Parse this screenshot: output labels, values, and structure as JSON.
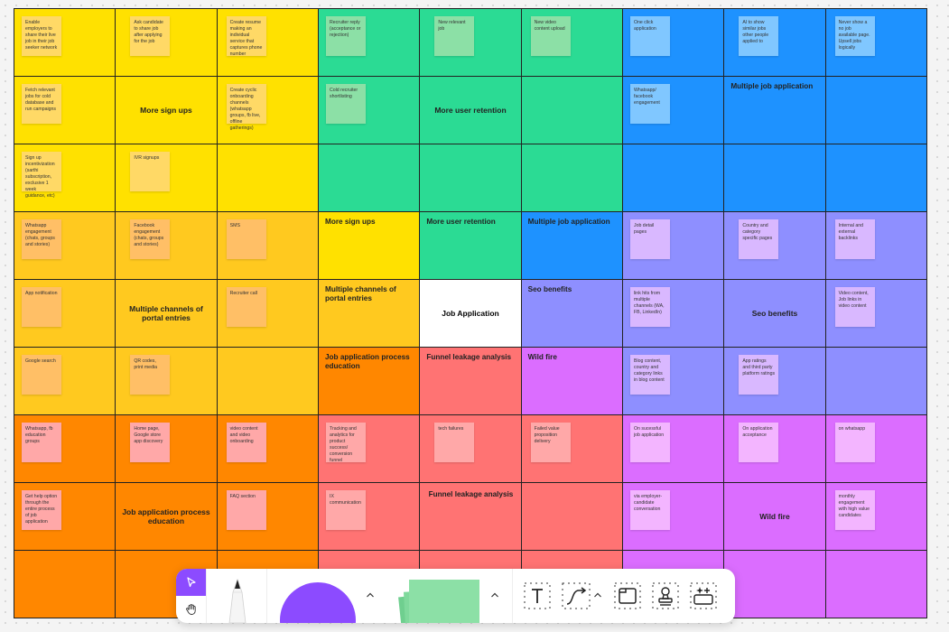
{
  "colors": {
    "yellow": "#ffe100",
    "gold": "#ffc91f",
    "orange": "#ff8700",
    "green": "#2bdb94",
    "salmon": "#ff7373",
    "blue": "#1e92ff",
    "periwinkle": "#8e8fff",
    "magenta": "#db6dff",
    "white": "#ffffff",
    "sticky_yellow": "#ffd966",
    "sticky_orange": "#ffbf66",
    "sticky_green": "#8ce0a6",
    "sticky_blue": "#80c7ff",
    "sticky_pink": "#ffa8a8",
    "sticky_lilac": "#d9b8ff",
    "sticky_violet": "#f3b5ff",
    "toolbar_accent": "#8c4bff"
  },
  "board": {
    "cells": [
      {
        "r": 1,
        "c": 1,
        "bg": "yellow",
        "sticky": {
          "text": "Enable employers to share their live job in their job seeker network",
          "color": "sticky_yellow"
        }
      },
      {
        "r": 1,
        "c": 2,
        "bg": "yellow",
        "sticky": {
          "text": "Ask candidate to share job after applying for the job",
          "color": "sticky_yellow"
        }
      },
      {
        "r": 1,
        "c": 3,
        "bg": "yellow",
        "sticky": {
          "text": "Create resume making an individual service that captures phone number",
          "color": "sticky_yellow"
        }
      },
      {
        "r": 1,
        "c": 4,
        "bg": "green",
        "sticky": {
          "text": "Recruiter reply (acceptance or rejection)",
          "color": "sticky_green"
        }
      },
      {
        "r": 1,
        "c": 5,
        "bg": "green",
        "sticky": {
          "text": "New relevant job",
          "color": "sticky_green"
        }
      },
      {
        "r": 1,
        "c": 6,
        "bg": "green",
        "sticky": {
          "text": "New video content upload",
          "color": "sticky_green"
        }
      },
      {
        "r": 1,
        "c": 7,
        "bg": "blue",
        "sticky": {
          "text": "One click application",
          "color": "sticky_blue"
        }
      },
      {
        "r": 1,
        "c": 8,
        "bg": "blue",
        "sticky": {
          "text": "AI to show similar jobs other people applied to",
          "color": "sticky_blue"
        }
      },
      {
        "r": 1,
        "c": 9,
        "bg": "blue",
        "sticky": {
          "text": "Never show a no job available page. Upsell jobs logically",
          "color": "sticky_blue"
        }
      },
      {
        "r": 2,
        "c": 1,
        "bg": "yellow",
        "sticky": {
          "text": "Fetch relevant jobs for cold database and run campaigns",
          "color": "sticky_yellow"
        }
      },
      {
        "r": 2,
        "c": 2,
        "bg": "yellow",
        "label": {
          "text": "More sign ups",
          "pos": "center"
        }
      },
      {
        "r": 2,
        "c": 3,
        "bg": "yellow",
        "sticky": {
          "text": "Create cyclic onboarding channels (whatsapp groups, fb live, offline gatherings)",
          "color": "sticky_yellow"
        }
      },
      {
        "r": 2,
        "c": 4,
        "bg": "green",
        "sticky": {
          "text": "Cold recruiter shortlisting",
          "color": "sticky_green"
        }
      },
      {
        "r": 2,
        "c": 5,
        "bg": "green",
        "label": {
          "text": "More user retention",
          "pos": "center"
        }
      },
      {
        "r": 2,
        "c": 6,
        "bg": "green"
      },
      {
        "r": 2,
        "c": 7,
        "bg": "blue",
        "sticky": {
          "text": "Whatsapp/ facebook engagement",
          "color": "sticky_blue"
        }
      },
      {
        "r": 2,
        "c": 8,
        "bg": "blue",
        "label": {
          "text": "Multiple job application",
          "pos": "top"
        }
      },
      {
        "r": 2,
        "c": 9,
        "bg": "blue"
      },
      {
        "r": 3,
        "c": 1,
        "bg": "yellow",
        "sticky": {
          "text": "Sign up incentivization (sarthi subscription, exclusive 1 week guidance, etc)",
          "color": "sticky_yellow"
        }
      },
      {
        "r": 3,
        "c": 2,
        "bg": "yellow",
        "sticky": {
          "text": "IVR signups",
          "color": "sticky_yellow"
        }
      },
      {
        "r": 3,
        "c": 3,
        "bg": "yellow"
      },
      {
        "r": 3,
        "c": 4,
        "bg": "green"
      },
      {
        "r": 3,
        "c": 5,
        "bg": "green"
      },
      {
        "r": 3,
        "c": 6,
        "bg": "green"
      },
      {
        "r": 3,
        "c": 7,
        "bg": "blue"
      },
      {
        "r": 3,
        "c": 8,
        "bg": "blue"
      },
      {
        "r": 3,
        "c": 9,
        "bg": "blue"
      },
      {
        "r": 4,
        "c": 1,
        "bg": "gold",
        "sticky": {
          "text": "Whatsapp engagement (chats, groups and stories)",
          "color": "sticky_orange"
        }
      },
      {
        "r": 4,
        "c": 2,
        "bg": "gold",
        "sticky": {
          "text": "Facebook engagement (chats, groups and stories)",
          "color": "sticky_orange"
        }
      },
      {
        "r": 4,
        "c": 3,
        "bg": "gold",
        "sticky": {
          "text": "SMS",
          "color": "sticky_orange"
        }
      },
      {
        "r": 4,
        "c": 4,
        "bg": "yellow",
        "label": {
          "text": "More sign ups",
          "pos": "top"
        }
      },
      {
        "r": 4,
        "c": 5,
        "bg": "green",
        "label": {
          "text": "More user retention",
          "pos": "top"
        }
      },
      {
        "r": 4,
        "c": 6,
        "bg": "blue",
        "label": {
          "text": "Multiple job application",
          "pos": "top"
        }
      },
      {
        "r": 4,
        "c": 7,
        "bg": "periwinkle",
        "sticky": {
          "text": "Job detail pages",
          "color": "sticky_lilac"
        }
      },
      {
        "r": 4,
        "c": 8,
        "bg": "periwinkle",
        "sticky": {
          "text": "Country and category specific pages",
          "color": "sticky_lilac"
        }
      },
      {
        "r": 4,
        "c": 9,
        "bg": "periwinkle",
        "sticky": {
          "text": "Internal and external backlinks",
          "color": "sticky_lilac"
        }
      },
      {
        "r": 5,
        "c": 1,
        "bg": "gold",
        "sticky": {
          "text": "App notification",
          "color": "sticky_orange"
        }
      },
      {
        "r": 5,
        "c": 2,
        "bg": "gold",
        "label": {
          "text": "Multiple channels of portal entries",
          "pos": "center"
        }
      },
      {
        "r": 5,
        "c": 3,
        "bg": "gold",
        "sticky": {
          "text": "Recruiter call",
          "color": "sticky_orange"
        }
      },
      {
        "r": 5,
        "c": 4,
        "bg": "gold",
        "label": {
          "text": "Multiple channels of portal entries",
          "pos": "top"
        }
      },
      {
        "r": 5,
        "c": 5,
        "bg": "white",
        "label": {
          "text": "Job Application",
          "pos": "center"
        }
      },
      {
        "r": 5,
        "c": 6,
        "bg": "periwinkle",
        "label": {
          "text": "Seo benefits",
          "pos": "top"
        }
      },
      {
        "r": 5,
        "c": 7,
        "bg": "periwinkle",
        "sticky": {
          "text": "link hits from multiple channels (WA, FB, LinkedIn)",
          "color": "sticky_lilac"
        }
      },
      {
        "r": 5,
        "c": 8,
        "bg": "periwinkle",
        "label": {
          "text": "Seo benefits",
          "pos": "center"
        }
      },
      {
        "r": 5,
        "c": 9,
        "bg": "periwinkle",
        "sticky": {
          "text": "Video content, Job links in video content",
          "color": "sticky_lilac"
        }
      },
      {
        "r": 6,
        "c": 1,
        "bg": "gold",
        "sticky": {
          "text": "Google search",
          "color": "sticky_orange"
        }
      },
      {
        "r": 6,
        "c": 2,
        "bg": "gold",
        "sticky": {
          "text": "QR codes, print media",
          "color": "sticky_orange"
        }
      },
      {
        "r": 6,
        "c": 3,
        "bg": "gold"
      },
      {
        "r": 6,
        "c": 4,
        "bg": "orange",
        "label": {
          "text": "Job application process education",
          "pos": "top"
        }
      },
      {
        "r": 6,
        "c": 5,
        "bg": "salmon",
        "label": {
          "text": "Funnel leakage analysis",
          "pos": "top"
        }
      },
      {
        "r": 6,
        "c": 6,
        "bg": "magenta",
        "label": {
          "text": "Wild fire",
          "pos": "top"
        }
      },
      {
        "r": 6,
        "c": 7,
        "bg": "periwinkle",
        "sticky": {
          "text": "Blog content, country and category links in blog content",
          "color": "sticky_lilac"
        }
      },
      {
        "r": 6,
        "c": 8,
        "bg": "periwinkle",
        "sticky": {
          "text": "App ratings and third party platform ratings",
          "color": "sticky_lilac"
        }
      },
      {
        "r": 6,
        "c": 9,
        "bg": "periwinkle"
      },
      {
        "r": 7,
        "c": 1,
        "bg": "orange",
        "sticky": {
          "text": "Whatsapp, fb education groups",
          "color": "sticky_pink"
        }
      },
      {
        "r": 7,
        "c": 2,
        "bg": "orange",
        "sticky": {
          "text": "Home page, Google store app discovery",
          "color": "sticky_pink"
        }
      },
      {
        "r": 7,
        "c": 3,
        "bg": "orange",
        "sticky": {
          "text": "video content and video onboarding",
          "color": "sticky_pink"
        }
      },
      {
        "r": 7,
        "c": 4,
        "bg": "salmon",
        "sticky": {
          "text": "Tracking and analytics for product success/ conversion funnel",
          "color": "sticky_pink"
        }
      },
      {
        "r": 7,
        "c": 5,
        "bg": "salmon",
        "sticky": {
          "text": "tech failures",
          "color": "sticky_pink"
        }
      },
      {
        "r": 7,
        "c": 6,
        "bg": "salmon",
        "sticky": {
          "text": "Failed value proposition delivery",
          "color": "sticky_pink"
        }
      },
      {
        "r": 7,
        "c": 7,
        "bg": "magenta",
        "sticky": {
          "text": "On sucessful job application",
          "color": "sticky_violet"
        }
      },
      {
        "r": 7,
        "c": 8,
        "bg": "magenta",
        "sticky": {
          "text": "On application acceptance",
          "color": "sticky_violet"
        }
      },
      {
        "r": 7,
        "c": 9,
        "bg": "magenta",
        "sticky": {
          "text": "on whatsapp",
          "color": "sticky_violet"
        }
      },
      {
        "r": 8,
        "c": 1,
        "bg": "orange",
        "sticky": {
          "text": "Get help option through the entire process of job application",
          "color": "sticky_pink"
        }
      },
      {
        "r": 8,
        "c": 2,
        "bg": "orange",
        "label": {
          "text": "Job application process education",
          "pos": "center"
        }
      },
      {
        "r": 8,
        "c": 3,
        "bg": "orange",
        "sticky": {
          "text": "FAQ section",
          "color": "sticky_pink"
        }
      },
      {
        "r": 8,
        "c": 4,
        "bg": "salmon",
        "sticky": {
          "text": "IX communication",
          "color": "sticky_pink"
        }
      },
      {
        "r": 8,
        "c": 5,
        "bg": "salmon",
        "label": {
          "text": "Funnel leakage analysis",
          "pos": "topc"
        }
      },
      {
        "r": 8,
        "c": 6,
        "bg": "salmon"
      },
      {
        "r": 8,
        "c": 7,
        "bg": "magenta",
        "sticky": {
          "text": "via employer-candidate conversation",
          "color": "sticky_violet"
        }
      },
      {
        "r": 8,
        "c": 8,
        "bg": "magenta",
        "label": {
          "text": "Wild fire",
          "pos": "center"
        }
      },
      {
        "r": 8,
        "c": 9,
        "bg": "magenta",
        "sticky": {
          "text": "monthly engagement with high value candidates",
          "color": "sticky_violet"
        }
      },
      {
        "r": 9,
        "c": 1,
        "bg": "orange"
      },
      {
        "r": 9,
        "c": 2,
        "bg": "orange"
      },
      {
        "r": 9,
        "c": 3,
        "bg": "orange"
      },
      {
        "r": 9,
        "c": 4,
        "bg": "salmon"
      },
      {
        "r": 9,
        "c": 5,
        "bg": "salmon"
      },
      {
        "r": 9,
        "c": 6,
        "bg": "salmon"
      },
      {
        "r": 9,
        "c": 7,
        "bg": "magenta"
      },
      {
        "r": 9,
        "c": 8,
        "bg": "magenta"
      },
      {
        "r": 9,
        "c": 9,
        "bg": "magenta"
      }
    ]
  },
  "toolbar": {
    "tools": [
      {
        "name": "select-tool",
        "icon": "cursor-arrow-icon",
        "active": true
      },
      {
        "name": "hand-tool",
        "icon": "hand-icon",
        "active": false
      },
      {
        "name": "pen-tool",
        "icon": "pen-icon"
      },
      {
        "name": "shape-tool",
        "icon": "circle-shape-icon"
      },
      {
        "name": "sticky-tool",
        "icon": "sticky-note-icon"
      },
      {
        "name": "text-tool",
        "icon": "text-icon",
        "glyph": "T"
      },
      {
        "name": "connector-tool",
        "icon": "connector-icon"
      },
      {
        "name": "section-tool",
        "icon": "section-icon"
      },
      {
        "name": "stamp-tool",
        "icon": "stamp-icon"
      },
      {
        "name": "more-tools",
        "icon": "sparkle-add-icon"
      }
    ]
  }
}
